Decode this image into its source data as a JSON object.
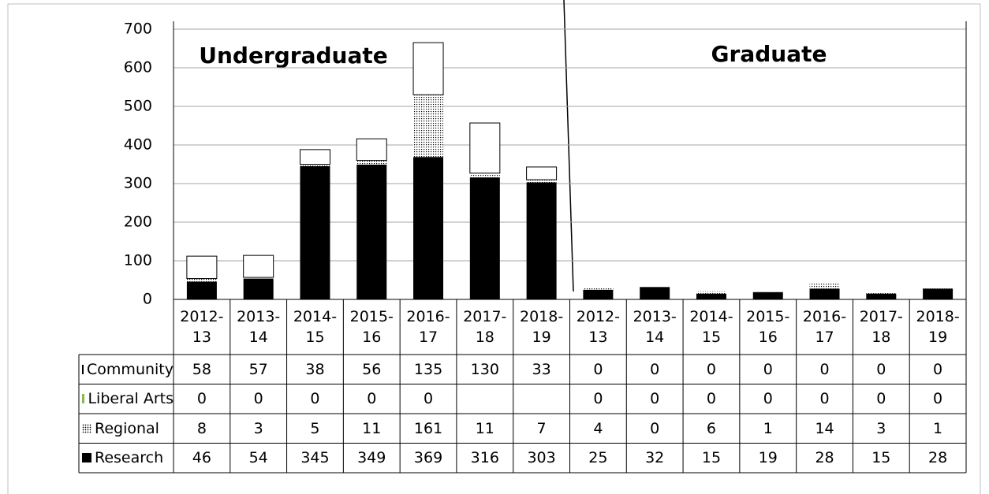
{
  "chart_data": {
    "type": "bar",
    "stacked": true,
    "categories": [
      "2012-13",
      "2013-14",
      "2014-15",
      "2015-16",
      "2016-17",
      "2017-18",
      "2018-19",
      "2012-13",
      "2013-14",
      "2014-15",
      "2015-16",
      "2016-17",
      "2017-18",
      "2018-19"
    ],
    "series": [
      {
        "name": "Research",
        "color": "#000000",
        "values": [
          46,
          54,
          345,
          349,
          369,
          316,
          303,
          25,
          32,
          15,
          19,
          28,
          15,
          28
        ]
      },
      {
        "name": "Regional",
        "color": "#000000",
        "pattern": "dotted",
        "values": [
          8,
          3,
          5,
          11,
          161,
          11,
          7,
          4,
          0,
          6,
          1,
          14,
          3,
          1
        ]
      },
      {
        "name": "Liberal Arts",
        "color": "#8fb54e",
        "values": [
          0,
          0,
          0,
          0,
          0,
          null,
          null,
          0,
          0,
          0,
          0,
          0,
          0,
          0
        ]
      },
      {
        "name": "Community",
        "color": "#ffffff",
        "values": [
          58,
          57,
          38,
          56,
          135,
          130,
          33,
          0,
          0,
          0,
          0,
          0,
          0,
          0
        ]
      }
    ],
    "annotations": [
      "Undergraduate",
      "Graduate"
    ],
    "ylim": [
      0,
      700
    ],
    "yticks": [
      0,
      100,
      200,
      300,
      400,
      500,
      600,
      700
    ],
    "grid": true,
    "data_table": true
  }
}
